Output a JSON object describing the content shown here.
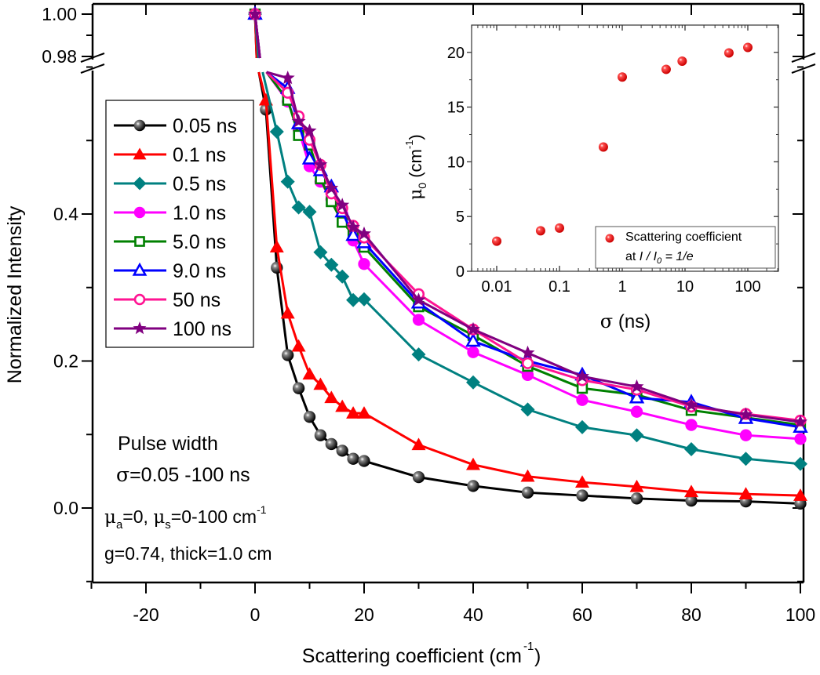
{
  "chart_data": [
    {
      "id": "main",
      "type": "line",
      "title": "",
      "xlabel": "Scattering coefficient (cm",
      "xlabel_sup": "-1",
      "xlabel_end": ")",
      "ylabel": "Normalized Intensity",
      "xlim": [
        -30,
        100
      ],
      "ylim_lower": [
        -0.1,
        0.6
      ],
      "ylim_upper": [
        0.98,
        1.005
      ],
      "axis_break": "y between 0.6 and 0.98",
      "x_ticks": [
        -20,
        0,
        20,
        40,
        60,
        80,
        100
      ],
      "x_tick_labels": [
        "-20",
        "0",
        "20",
        "40",
        "60",
        "80",
        "100"
      ],
      "x_minor_ticks": [
        -30,
        -10,
        10,
        30,
        50,
        70,
        90
      ],
      "y_ticks": [
        0.0,
        0.2,
        0.4
      ],
      "y_tick_labels": [
        "0.0",
        "0.2",
        "0.4"
      ],
      "y_minor_ticks": [
        -0.1,
        0.1,
        0.3,
        0.5
      ],
      "y_upper_ticks": [
        1.0,
        0.98
      ],
      "y_upper_tick_labels": [
        "1.00",
        "0.98"
      ],
      "y_upper_minor_ticks": [
        0.99
      ],
      "grid": false,
      "legend_position": "upper-left",
      "x": [
        0,
        2,
        4,
        6,
        8,
        10,
        12,
        14,
        16,
        18,
        20,
        30,
        40,
        50,
        60,
        70,
        80,
        90,
        100
      ],
      "series": [
        {
          "name": "0.05 ns",
          "color": "#000000",
          "marker": "sphere",
          "values": [
            1.0,
            0.542,
            0.327,
            0.208,
            0.163,
            0.124,
            0.099,
            0.087,
            0.078,
            0.067,
            0.064,
            0.042,
            0.03,
            0.021,
            0.017,
            0.013,
            0.01,
            0.009,
            0.006
          ]
        },
        {
          "name": "0.1 ns",
          "color": "#ff0000",
          "marker": "triangle",
          "values": [
            1.0,
            0.555,
            0.355,
            0.265,
            0.22,
            0.182,
            0.168,
            0.15,
            0.138,
            0.129,
            0.129,
            0.086,
            0.059,
            0.043,
            0.035,
            0.029,
            0.022,
            0.019,
            0.017
          ]
        },
        {
          "name": "0.5 ns",
          "color": "#008080",
          "marker": "diamond",
          "values": [
            1.0,
            null,
            0.512,
            0.444,
            0.409,
            0.403,
            0.348,
            0.331,
            0.315,
            0.283,
            0.284,
            0.209,
            0.171,
            0.134,
            0.11,
            0.099,
            0.08,
            0.067,
            0.06
          ]
        },
        {
          "name": "1.0 ns",
          "color": "#ff00ff",
          "marker": "circle-filled",
          "values": [
            1.0,
            null,
            null,
            0.553,
            0.515,
            0.465,
            0.444,
            0.42,
            0.4,
            0.364,
            0.332,
            0.256,
            0.212,
            0.181,
            0.147,
            0.131,
            0.113,
            0.099,
            0.094
          ]
        },
        {
          "name": "5.0 ns",
          "color": "#008000",
          "marker": "square-open",
          "values": [
            1.0,
            null,
            null,
            0.555,
            0.507,
            0.494,
            0.448,
            0.417,
            0.389,
            0.372,
            0.355,
            0.274,
            0.235,
            0.193,
            0.163,
            0.154,
            0.133,
            0.123,
            0.113
          ]
        },
        {
          "name": "9.0 ns",
          "color": "#0000ff",
          "marker": "triangle-open",
          "values": [
            1.0,
            null,
            null,
            0.571,
            0.523,
            0.475,
            0.459,
            0.437,
            0.403,
            0.371,
            0.361,
            0.279,
            0.227,
            0.2,
            0.181,
            0.15,
            0.144,
            0.122,
            0.11
          ]
        },
        {
          "name": "50 ns",
          "color": "#ff1493",
          "marker": "circle-open",
          "values": [
            1.0,
            null,
            null,
            0.565,
            0.533,
            0.501,
            0.467,
            0.428,
            0.408,
            0.384,
            0.368,
            0.291,
            0.243,
            0.197,
            0.174,
            0.161,
            0.138,
            0.128,
            0.119
          ]
        },
        {
          "name": "100 ns",
          "color": "#800080",
          "marker": "star",
          "values": [
            1.0,
            null,
            null,
            0.585,
            0.526,
            0.513,
            0.467,
            0.435,
            0.412,
            0.382,
            0.373,
            0.283,
            0.243,
            0.211,
            0.179,
            0.165,
            0.14,
            0.127,
            0.117
          ]
        }
      ],
      "annotations": {
        "line1": "Pulse width",
        "line2_sym": "σ",
        "line2": "=0.05 -100 ns",
        "line3_mu": "μ",
        "line3_a": "a",
        "line3_mid": "=0, ",
        "line3_mu2": "μ",
        "line3_s": "s",
        "line3_end": "=0-100 cm",
        "line3_sup": "-1",
        "line4": "g=0.74, thick=1.0 cm"
      }
    },
    {
      "id": "inset",
      "type": "scatter",
      "title": "",
      "xlabel_sym": "σ",
      "xlabel": " (ns)",
      "ylabel_mu": "μ",
      "ylabel_sub": "0",
      "ylabel": " (cm",
      "ylabel_sup": "-1",
      "ylabel_end": ")",
      "xscale": "log",
      "xlim": [
        0.004,
        300
      ],
      "ylim": [
        0,
        22.5
      ],
      "x_ticks": [
        0.01,
        0.1,
        1,
        10,
        100
      ],
      "x_tick_labels": [
        "0.01",
        "0.1",
        "1",
        "10",
        "100"
      ],
      "y_ticks": [
        0,
        5,
        10,
        15,
        20
      ],
      "y_tick_labels": [
        "0",
        "5",
        "10",
        "15",
        "20"
      ],
      "y_minor_ticks": [
        2.5,
        7.5,
        12.5,
        17.5
      ],
      "grid": false,
      "legend_position": "bottom-right",
      "series": [
        {
          "name": "Scattering coefficient",
          "name_line2_pre": "at ",
          "name_line2_math": "I / I",
          "name_line2_sub": "0",
          "name_line2_post": " = 1/e",
          "color": "#ff0000",
          "marker": "sphere",
          "x": [
            0.01,
            0.05,
            0.1,
            0.5,
            1,
            5,
            9,
            50,
            100
          ],
          "y": [
            2.75,
            3.7,
            3.95,
            11.35,
            17.75,
            18.45,
            19.2,
            19.95,
            20.45
          ]
        }
      ]
    }
  ]
}
